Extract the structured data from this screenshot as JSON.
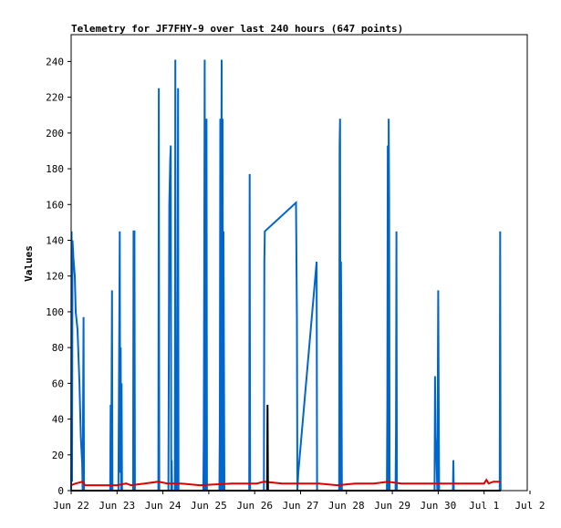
{
  "chart_data": {
    "type": "line",
    "title": "Telemetry for JF7FHY-9 over last 240 hours (647 points)",
    "xlabel": "",
    "ylabel": "Values",
    "x_ticks": [
      "Jun 22",
      "Jun 23",
      "Jun 24",
      "Jun 25",
      "Jun 26",
      "Jun 27",
      "Jun 28",
      "Jun 29",
      "Jun 30",
      "Jul 1",
      "Jul 2"
    ],
    "xlim": [
      0,
      10.3
    ],
    "ylim": [
      0,
      255
    ],
    "y_ticks": [
      0,
      20,
      40,
      60,
      80,
      100,
      120,
      140,
      160,
      180,
      200,
      220,
      240
    ],
    "grid": false,
    "series": [
      {
        "color": "#0066cc",
        "points": [
          [
            0.0,
            0
          ],
          [
            0.01,
            145
          ],
          [
            0.02,
            5
          ],
          [
            0.03,
            140
          ],
          [
            0.05,
            130
          ],
          [
            0.08,
            120
          ],
          [
            0.1,
            100
          ],
          [
            0.14,
            90
          ],
          [
            0.18,
            60
          ],
          [
            0.21,
            30
          ],
          [
            0.24,
            15
          ],
          [
            0.25,
            0
          ],
          [
            0.27,
            97
          ],
          [
            0.28,
            0
          ],
          [
            0.85,
            0
          ],
          [
            0.86,
            48
          ],
          [
            0.87,
            0
          ],
          [
            0.89,
            112
          ],
          [
            0.9,
            0
          ],
          [
            1.03,
            0
          ],
          [
            1.04,
            48
          ],
          [
            1.06,
            145
          ],
          [
            1.07,
            10
          ],
          [
            1.08,
            80
          ],
          [
            1.09,
            0
          ],
          [
            1.1,
            60
          ],
          [
            1.11,
            0
          ],
          [
            1.35,
            0
          ],
          [
            1.36,
            145
          ],
          [
            1.38,
            145
          ],
          [
            1.39,
            0
          ],
          [
            1.9,
            0
          ],
          [
            1.91,
            225
          ],
          [
            1.92,
            0
          ],
          [
            2.12,
            0
          ],
          [
            2.14,
            160
          ],
          [
            2.16,
            185
          ],
          [
            2.17,
            193
          ],
          [
            2.18,
            0
          ],
          [
            2.19,
            17
          ],
          [
            2.2,
            0
          ],
          [
            2.26,
            0
          ],
          [
            2.27,
            241
          ],
          [
            2.28,
            0
          ],
          [
            2.3,
            17
          ],
          [
            2.31,
            0
          ],
          [
            2.33,
            225
          ],
          [
            2.34,
            0
          ],
          [
            2.88,
            0
          ],
          [
            2.89,
            32
          ],
          [
            2.9,
            128
          ],
          [
            2.91,
            241
          ],
          [
            2.92,
            0
          ],
          [
            2.94,
            112
          ],
          [
            2.95,
            208
          ],
          [
            2.96,
            0
          ],
          [
            3.23,
            0
          ],
          [
            3.24,
            40
          ],
          [
            3.25,
            208
          ],
          [
            3.26,
            0
          ],
          [
            3.27,
            160
          ],
          [
            3.28,
            241
          ],
          [
            3.29,
            0
          ],
          [
            3.3,
            208
          ],
          [
            3.31,
            0
          ],
          [
            3.32,
            145
          ],
          [
            3.34,
            0
          ],
          [
            3.88,
            0
          ],
          [
            3.89,
            177
          ],
          [
            3.9,
            0
          ],
          [
            4.2,
            0
          ],
          [
            4.21,
            128
          ],
          [
            4.22,
            145
          ],
          [
            4.9,
            161
          ],
          [
            4.92,
            96
          ],
          [
            4.93,
            0
          ],
          [
            4.95,
            10
          ],
          [
            5.35,
            128
          ],
          [
            5.36,
            0
          ],
          [
            5.84,
            0
          ],
          [
            5.85,
            193
          ],
          [
            5.86,
            208
          ],
          [
            5.87,
            0
          ],
          [
            5.88,
            128
          ],
          [
            5.89,
            80
          ],
          [
            5.9,
            0
          ],
          [
            6.88,
            0
          ],
          [
            6.89,
            48
          ],
          [
            6.9,
            193
          ],
          [
            6.91,
            0
          ],
          [
            6.92,
            208
          ],
          [
            6.93,
            160
          ],
          [
            6.94,
            0
          ],
          [
            7.07,
            0
          ],
          [
            7.08,
            32
          ],
          [
            7.09,
            145
          ],
          [
            7.1,
            0
          ],
          [
            7.92,
            0
          ],
          [
            7.93,
            64
          ],
          [
            7.94,
            30
          ],
          [
            7.96,
            20
          ],
          [
            7.98,
            0
          ],
          [
            8.0,
            112
          ],
          [
            8.02,
            0
          ],
          [
            8.32,
            0
          ],
          [
            8.33,
            17
          ],
          [
            8.34,
            0
          ],
          [
            9.34,
            0
          ],
          [
            9.35,
            145
          ],
          [
            9.36,
            0
          ]
        ]
      },
      {
        "color": "#dd0000",
        "points": [
          [
            0.0,
            3
          ],
          [
            0.1,
            4
          ],
          [
            0.25,
            5
          ],
          [
            0.3,
            3
          ],
          [
            1.0,
            3
          ],
          [
            1.2,
            4
          ],
          [
            1.3,
            3
          ],
          [
            1.6,
            4
          ],
          [
            1.9,
            5
          ],
          [
            2.1,
            4
          ],
          [
            2.4,
            4
          ],
          [
            2.8,
            3
          ],
          [
            3.5,
            4
          ],
          [
            3.9,
            4
          ],
          [
            4.05,
            4
          ],
          [
            4.2,
            5
          ],
          [
            4.6,
            4
          ],
          [
            5.4,
            4
          ],
          [
            5.8,
            3
          ],
          [
            6.2,
            4
          ],
          [
            6.6,
            4
          ],
          [
            6.9,
            5
          ],
          [
            7.2,
            4
          ],
          [
            8.0,
            4
          ],
          [
            8.8,
            4
          ],
          [
            9.0,
            4
          ],
          [
            9.05,
            6
          ],
          [
            9.1,
            4
          ],
          [
            9.2,
            5
          ],
          [
            9.3,
            5
          ],
          [
            9.36,
            5
          ]
        ]
      },
      {
        "color": "#000000",
        "points": [
          [
            0.0,
            0
          ],
          [
            4.27,
            0
          ],
          [
            4.28,
            48
          ],
          [
            4.29,
            0
          ],
          [
            9.36,
            0
          ]
        ]
      }
    ]
  }
}
